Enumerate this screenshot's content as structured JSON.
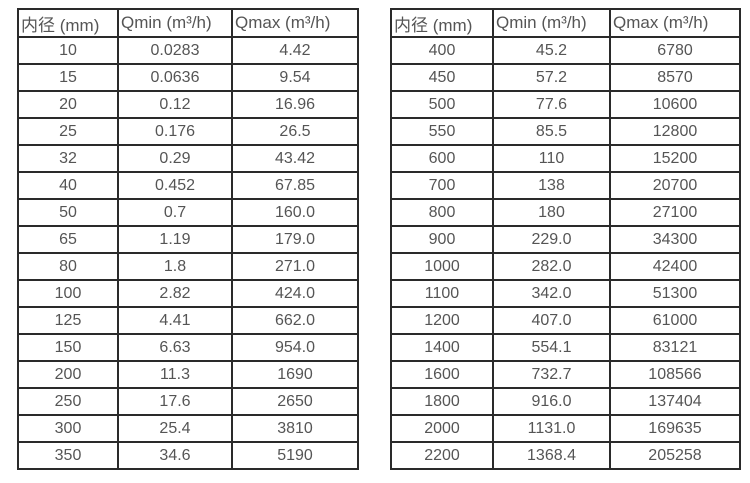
{
  "page": {
    "background_color": "#ffffff",
    "border_color": "#2a2a2a",
    "text_color": "#555555"
  },
  "chart_data": [
    {
      "type": "table",
      "columns": [
        "内径 (mm)",
        "Qmin (m³/h)",
        "Qmax (m³/h)"
      ],
      "rows": [
        [
          "10",
          "0.0283",
          "4.42"
        ],
        [
          "15",
          "0.0636",
          "9.54"
        ],
        [
          "20",
          "0.12",
          "16.96"
        ],
        [
          "25",
          "0.176",
          "26.5"
        ],
        [
          "32",
          "0.29",
          "43.42"
        ],
        [
          "40",
          "0.452",
          "67.85"
        ],
        [
          "50",
          "0.7",
          "160.0"
        ],
        [
          "65",
          "1.19",
          "179.0"
        ],
        [
          "80",
          "1.8",
          "271.0"
        ],
        [
          "100",
          "2.82",
          "424.0"
        ],
        [
          "125",
          "4.41",
          "662.0"
        ],
        [
          "150",
          "6.63",
          "954.0"
        ],
        [
          "200",
          "11.3",
          "1690"
        ],
        [
          "250",
          "17.6",
          "2650"
        ],
        [
          "300",
          "25.4",
          "3810"
        ],
        [
          "350",
          "34.6",
          "5190"
        ]
      ]
    },
    {
      "type": "table",
      "columns": [
        "内径 (mm)",
        "Qmin (m³/h)",
        "Qmax (m³/h)"
      ],
      "rows": [
        [
          "400",
          "45.2",
          "6780"
        ],
        [
          "450",
          "57.2",
          "8570"
        ],
        [
          "500",
          "77.6",
          "10600"
        ],
        [
          "550",
          "85.5",
          "12800"
        ],
        [
          "600",
          "110",
          "15200"
        ],
        [
          "700",
          "138",
          "20700"
        ],
        [
          "800",
          "180",
          "27100"
        ],
        [
          "900",
          "229.0",
          "34300"
        ],
        [
          "1000",
          "282.0",
          "42400"
        ],
        [
          "1100",
          "342.0",
          "51300"
        ],
        [
          "1200",
          "407.0",
          "61000"
        ],
        [
          "1400",
          "554.1",
          "83121"
        ],
        [
          "1600",
          "732.7",
          "108566"
        ],
        [
          "1800",
          "916.0",
          "137404"
        ],
        [
          "2000",
          "1131.0",
          "169635"
        ],
        [
          "2200",
          "1368.4",
          "205258"
        ]
      ]
    }
  ]
}
